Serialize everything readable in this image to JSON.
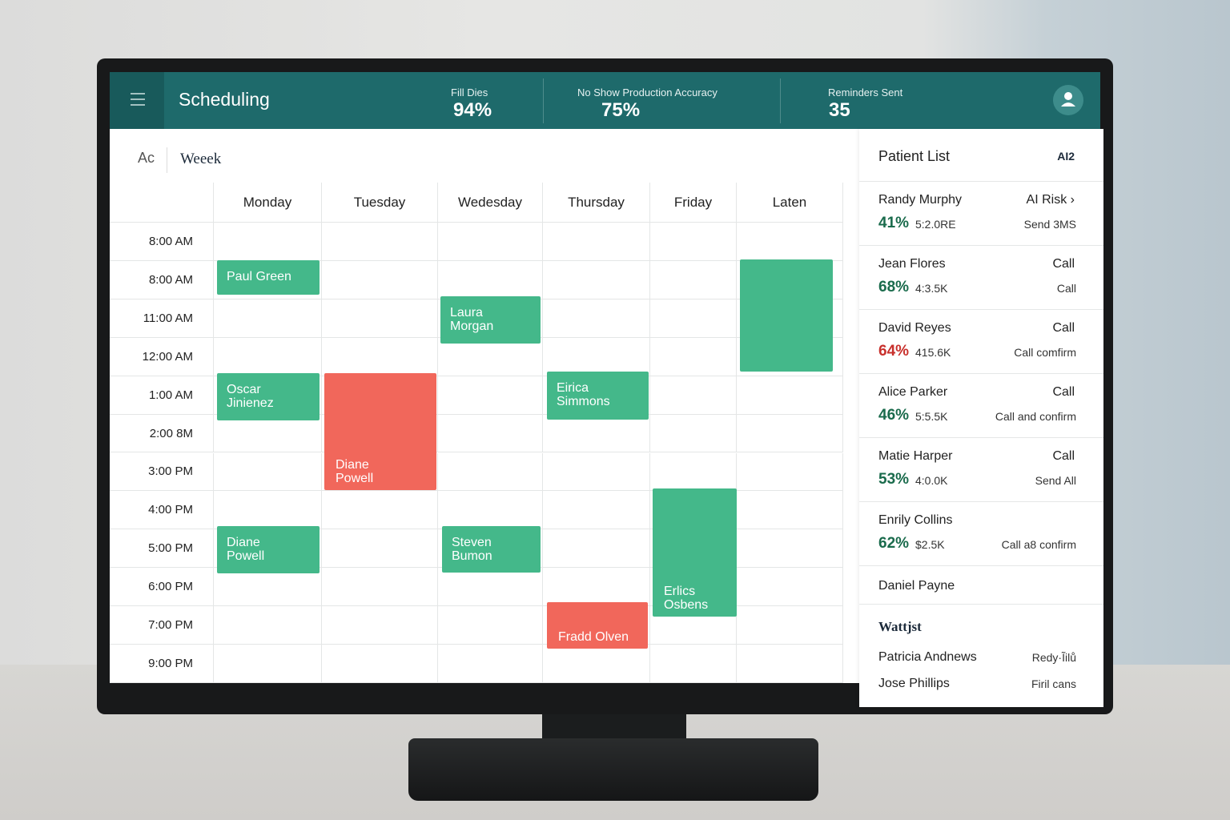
{
  "header": {
    "title": "Scheduling",
    "stats": [
      {
        "label": "Fill Dies",
        "value": "94%"
      },
      {
        "label": "No Show Production Accuracy",
        "value": "75%"
      },
      {
        "label": "Reminders Sent",
        "value": "35"
      }
    ]
  },
  "toolbar": {
    "left": "Ac",
    "view": "Weeek"
  },
  "calendar": {
    "days": [
      "Monday",
      "Tuesday",
      "Wedesday",
      "Thursday",
      "Friday",
      "Laten"
    ],
    "times": [
      "8:00 AM",
      "8:00 AM",
      "11:00 AM",
      "12:00 AM",
      "1:00 AM",
      "2:00 8M",
      "3:00 PM",
      "4:00 PM",
      "5:00 PM",
      "6:00 PM",
      "7:00 PM",
      "9:00 PM"
    ],
    "appointments": [
      "Paul Green",
      "Laura Morgan",
      "Oscar Jinienez",
      "Diane Powell",
      "Eirica Simmons",
      "Diane Powell",
      "Steven Bumon",
      "Erlics Osbens",
      "Fradd Olven"
    ]
  },
  "patient_list": {
    "title": "Patient List",
    "badge": "AI2",
    "patients": [
      {
        "name": "Randy Murphy",
        "action": "AI Risk ›",
        "percent": "41%",
        "detail": "5:2.0RE",
        "note": "Send 3MS"
      },
      {
        "name": "Jean Flores",
        "action": "Call",
        "percent": "68%",
        "detail": "4:3.5K",
        "note": "Call"
      },
      {
        "name": "David Reyes",
        "action": "Call",
        "percent": "64%",
        "detail": "415.6K",
        "note": "Call comfirm"
      },
      {
        "name": "Alice Parker",
        "action": "Call",
        "percent": "46%",
        "detail": "5:5.5K",
        "note": "Call and confirm"
      },
      {
        "name": "Matie Harper",
        "action": "Call",
        "percent": "53%",
        "detail": "4:0.0K",
        "note": "Send All"
      },
      {
        "name": "Enrily Collins",
        "percent": "62%",
        "detail": "$2.5K",
        "note": "Call a8 confirm"
      },
      {
        "name": "Daniel Payne"
      }
    ],
    "section": "Wattjst",
    "waitlist": [
      {
        "name": "Patricia Andnews",
        "note": "Redy·Ĩilů"
      },
      {
        "name": "Jose Phillips",
        "note": "Firil cans"
      }
    ]
  }
}
